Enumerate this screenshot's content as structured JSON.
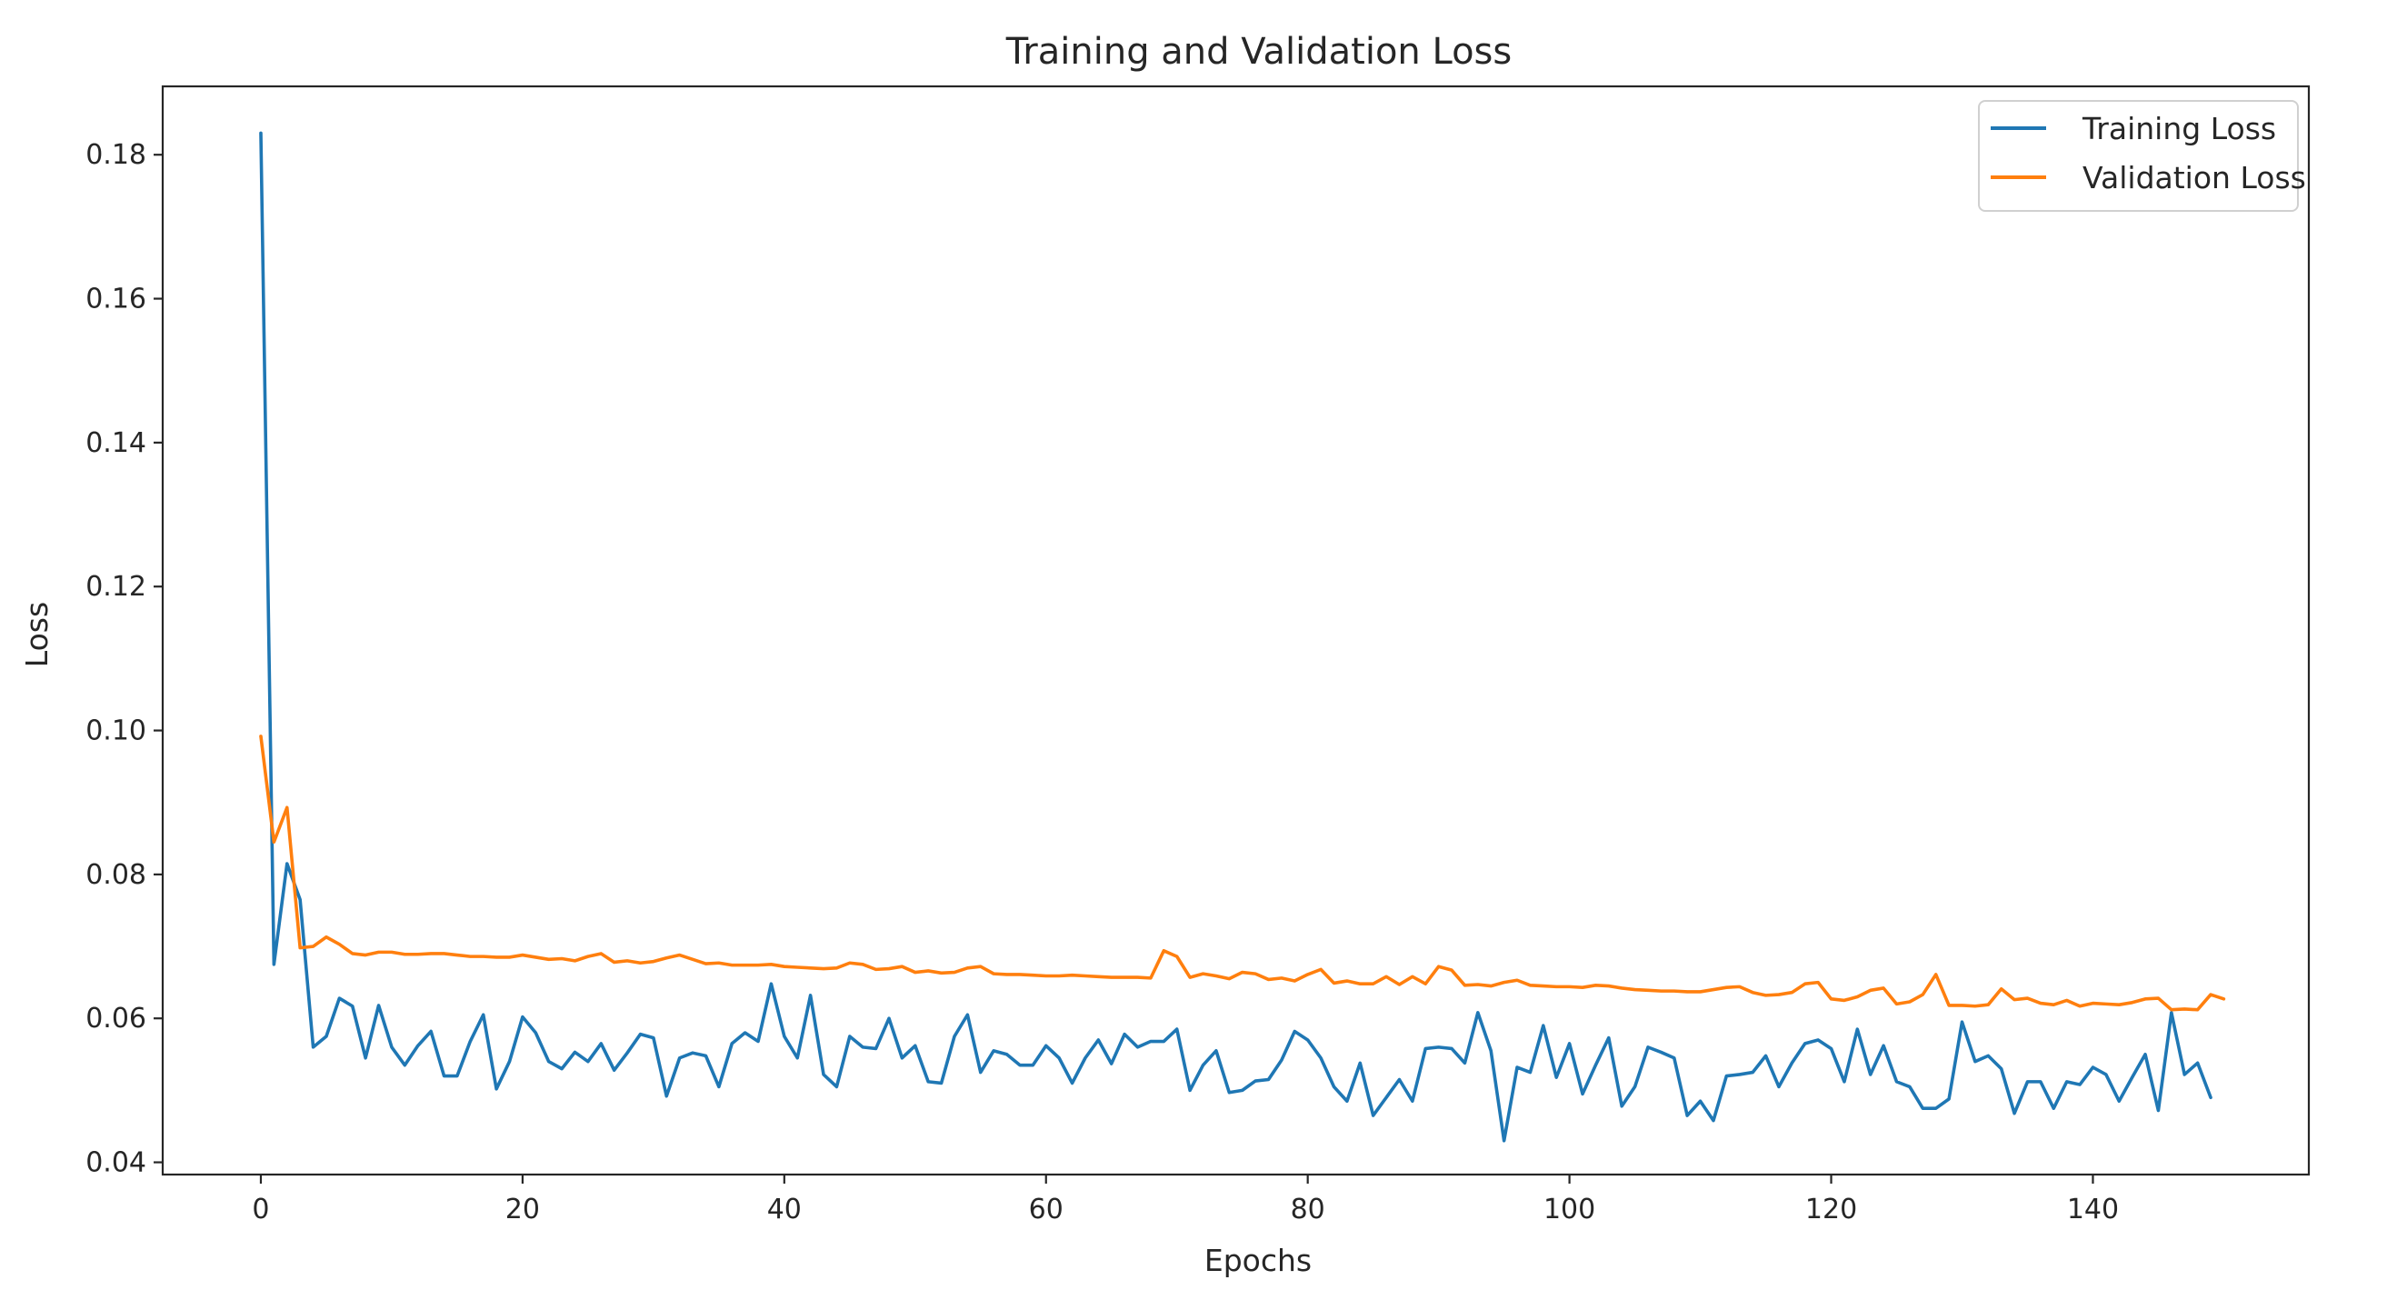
{
  "chart_data": {
    "type": "line",
    "title": "Training and Validation Loss",
    "xlabel": "Epochs",
    "ylabel": "Loss",
    "xlim": [
      -7.5,
      156.5
    ],
    "ylim": [
      0.0383,
      0.1895
    ],
    "xticks": [
      0,
      20,
      40,
      60,
      80,
      100,
      120,
      140
    ],
    "xtick_labels": [
      "0",
      "20",
      "40",
      "60",
      "80",
      "100",
      "120",
      "140"
    ],
    "yticks": [
      0.04,
      0.06,
      0.08,
      0.1,
      0.12,
      0.14,
      0.16,
      0.18
    ],
    "ytick_labels": [
      "0.04",
      "0.06",
      "0.08",
      "0.10",
      "0.12",
      "0.14",
      "0.16",
      "0.18"
    ],
    "grid": false,
    "legend_position": "top-right",
    "series": [
      {
        "name": "Training Loss",
        "color": "#1f77b4",
        "values": [
          0.183,
          0.0675,
          0.0815,
          0.0765,
          0.056,
          0.0575,
          0.0628,
          0.0617,
          0.0545,
          0.0618,
          0.056,
          0.0535,
          0.0562,
          0.0582,
          0.052,
          0.052,
          0.0568,
          0.0605,
          0.0502,
          0.054,
          0.0602,
          0.058,
          0.054,
          0.053,
          0.0553,
          0.054,
          0.0565,
          0.0528,
          0.0552,
          0.0578,
          0.0573,
          0.0492,
          0.0545,
          0.0552,
          0.0548,
          0.0505,
          0.0565,
          0.058,
          0.0568,
          0.0648,
          0.0575,
          0.0545,
          0.0632,
          0.0522,
          0.0505,
          0.0575,
          0.056,
          0.0558,
          0.06,
          0.0545,
          0.0562,
          0.0512,
          0.051,
          0.0575,
          0.0605,
          0.0525,
          0.0555,
          0.055,
          0.0535,
          0.0535,
          0.0562,
          0.0545,
          0.051,
          0.0545,
          0.057,
          0.0537,
          0.0578,
          0.056,
          0.0568,
          0.0568,
          0.0585,
          0.05,
          0.0535,
          0.0555,
          0.0497,
          0.05,
          0.0513,
          0.0515,
          0.0542,
          0.0582,
          0.057,
          0.0545,
          0.0505,
          0.0485,
          0.0538,
          0.0465,
          0.049,
          0.0515,
          0.0485,
          0.0558,
          0.056,
          0.0558,
          0.0538,
          0.0608,
          0.0555,
          0.043,
          0.0532,
          0.0525,
          0.059,
          0.0518,
          0.0565,
          0.0495,
          0.0535,
          0.0573,
          0.0478,
          0.0505,
          0.056,
          0.0553,
          0.0545,
          0.0465,
          0.0485,
          0.0458,
          0.052,
          0.0522,
          0.0525,
          0.0548,
          0.0505,
          0.0538,
          0.0565,
          0.057,
          0.0558,
          0.0512,
          0.0585,
          0.0522,
          0.0562,
          0.0512,
          0.0505,
          0.0475,
          0.0475,
          0.0488,
          0.0595,
          0.054,
          0.0548,
          0.053,
          0.0468,
          0.0512,
          0.0512,
          0.0475,
          0.0512,
          0.0508,
          0.0532,
          0.0522,
          0.0485,
          0.0518,
          0.055,
          0.0472,
          0.0608,
          0.0522,
          0.0538,
          0.049
        ]
      },
      {
        "name": "Validation Loss",
        "color": "#ff7f0e",
        "values": [
          0.0992,
          0.0845,
          0.0893,
          0.0698,
          0.07,
          0.0713,
          0.0703,
          0.069,
          0.0688,
          0.0692,
          0.0692,
          0.0689,
          0.0689,
          0.069,
          0.069,
          0.0688,
          0.0686,
          0.0686,
          0.0685,
          0.0685,
          0.0688,
          0.0685,
          0.0682,
          0.0683,
          0.068,
          0.0686,
          0.069,
          0.0678,
          0.068,
          0.0677,
          0.0679,
          0.0684,
          0.0688,
          0.0682,
          0.0676,
          0.0677,
          0.0674,
          0.0674,
          0.0674,
          0.0675,
          0.0672,
          0.0671,
          0.067,
          0.0669,
          0.067,
          0.0677,
          0.0675,
          0.0668,
          0.0669,
          0.0672,
          0.0664,
          0.0666,
          0.0663,
          0.0664,
          0.067,
          0.0672,
          0.0662,
          0.0661,
          0.0661,
          0.066,
          0.0659,
          0.0659,
          0.066,
          0.0659,
          0.0658,
          0.0657,
          0.0657,
          0.0657,
          0.0656,
          0.0694,
          0.0686,
          0.0657,
          0.0662,
          0.0659,
          0.0655,
          0.0664,
          0.0662,
          0.0654,
          0.0656,
          0.0652,
          0.0661,
          0.0668,
          0.0649,
          0.0652,
          0.0648,
          0.0648,
          0.0658,
          0.0647,
          0.0658,
          0.0648,
          0.0672,
          0.0667,
          0.0646,
          0.0647,
          0.0645,
          0.065,
          0.0653,
          0.0646,
          0.0645,
          0.0644,
          0.0644,
          0.0643,
          0.0646,
          0.0645,
          0.0642,
          0.064,
          0.0639,
          0.0638,
          0.0638,
          0.0637,
          0.0637,
          0.064,
          0.0643,
          0.0644,
          0.0636,
          0.0632,
          0.0633,
          0.0636,
          0.0648,
          0.065,
          0.0627,
          0.0625,
          0.063,
          0.0639,
          0.0642,
          0.062,
          0.0623,
          0.0633,
          0.0661,
          0.0618,
          0.0618,
          0.0617,
          0.0619,
          0.0641,
          0.0626,
          0.0628,
          0.0621,
          0.0619,
          0.0625,
          0.0617,
          0.0621,
          0.062,
          0.0619,
          0.0622,
          0.0627,
          0.0628,
          0.0612,
          0.0613,
          0.0612,
          0.0633,
          0.0627
        ]
      }
    ]
  }
}
